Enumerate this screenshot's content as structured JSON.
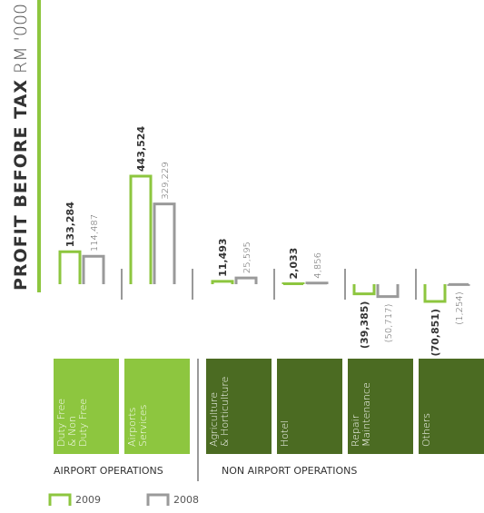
{
  "chart_data": {
    "type": "bar",
    "title": "PROFIT BEFORE TAX",
    "unit": "RM '000",
    "groups": [
      {
        "name": "AIRPORT OPERATIONS",
        "color": "#8dc63f",
        "categories": [
          [
            "Duty Free",
            "& Non",
            "Duty Free"
          ],
          [
            "Airports",
            "Services"
          ]
        ]
      },
      {
        "name": "NON AIRPORT OPERATIONS",
        "color": "#4b6b22",
        "categories": [
          [
            "Agriculture",
            "& Horticulture"
          ],
          [
            "Hotel"
          ],
          [
            "Repair",
            "Maintenance"
          ],
          [
            "Others"
          ]
        ]
      }
    ],
    "series": [
      {
        "name": "2009",
        "color": "#8dc63f",
        "values": [
          133284,
          443524,
          11493,
          2033,
          -39385,
          -70851
        ],
        "value_labels": [
          "133,284",
          "443,524",
          "11,493",
          "2,033",
          "(39,385)",
          "(70,851)"
        ]
      },
      {
        "name": "2008",
        "color": "#9a9a9a",
        "values": [
          114487,
          329229,
          25595,
          4856,
          -50717,
          -1254
        ],
        "value_labels": [
          "114,487",
          "329,229",
          "25,595",
          "4,856",
          "(50,717)",
          "(1,254)"
        ]
      }
    ]
  }
}
